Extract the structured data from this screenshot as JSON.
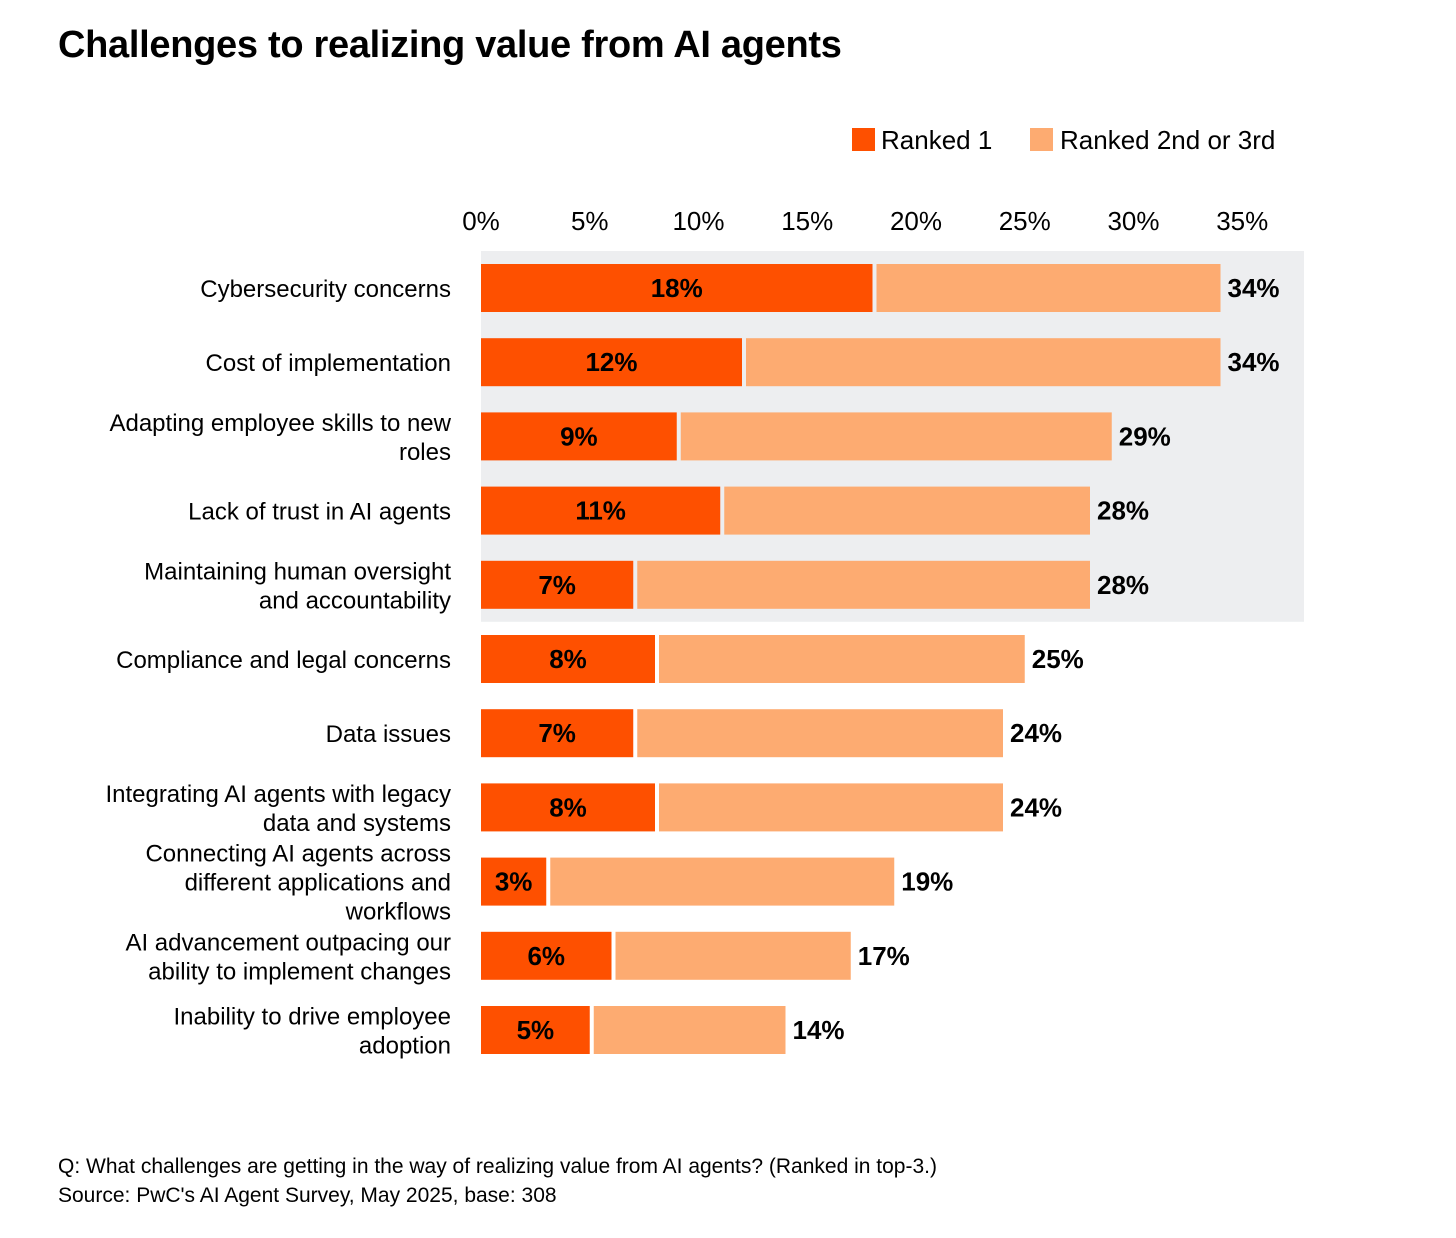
{
  "title": "Challenges to realizing value from AI agents",
  "footnote": {
    "question": "Q: What challenges are getting in the way of realizing value from AI agents? (Ranked in top-3.)",
    "source": "Source: PwC's AI Agent Survey, May 2025, base: 308"
  },
  "colors": {
    "ranked1": "#FE5000",
    "ranked23": "#FDAB71",
    "highlight": "#EDEEF0"
  },
  "chart_data": {
    "type": "bar",
    "orientation": "horizontal",
    "stacked": true,
    "title": "Challenges to realizing value from AI agents",
    "legend_position": "top-right",
    "xlim": [
      0,
      35
    ],
    "x_ticks": [
      "0%",
      "5%",
      "10%",
      "15%",
      "20%",
      "25%",
      "30%",
      "35%"
    ],
    "x_tick_values": [
      0,
      5,
      10,
      15,
      20,
      25,
      30,
      35
    ],
    "highlighted_rows": 5,
    "categories": [
      [
        "Cybersecurity concerns"
      ],
      [
        "Cost of implementation"
      ],
      [
        "Adapting employee skills to new",
        "roles"
      ],
      [
        "Lack of trust in AI agents"
      ],
      [
        "Maintaining human oversight",
        "and accountability"
      ],
      [
        "Compliance and legal concerns"
      ],
      [
        "Data issues"
      ],
      [
        "Integrating AI agents with legacy",
        "data and systems"
      ],
      [
        "Connecting AI agents across",
        "different applications and",
        "workflows"
      ],
      [
        "AI advancement outpacing our",
        "ability to implement changes"
      ],
      [
        "Inability to drive employee",
        "adoption"
      ]
    ],
    "series": [
      {
        "name": "Ranked 1",
        "values": [
          18,
          12,
          9,
          11,
          7,
          8,
          7,
          8,
          3,
          6,
          5
        ],
        "labels": [
          "18%",
          "12%",
          "9%",
          "11%",
          "7%",
          "8%",
          "7%",
          "8%",
          "3%",
          "6%",
          "5%"
        ]
      },
      {
        "name": "Ranked 2nd or 3rd",
        "totals": [
          34,
          34,
          29,
          28,
          28,
          25,
          24,
          24,
          19,
          17,
          14
        ],
        "total_labels": [
          "34%",
          "34%",
          "29%",
          "28%",
          "28%",
          "25%",
          "24%",
          "24%",
          "19%",
          "17%",
          "14%"
        ]
      }
    ]
  }
}
